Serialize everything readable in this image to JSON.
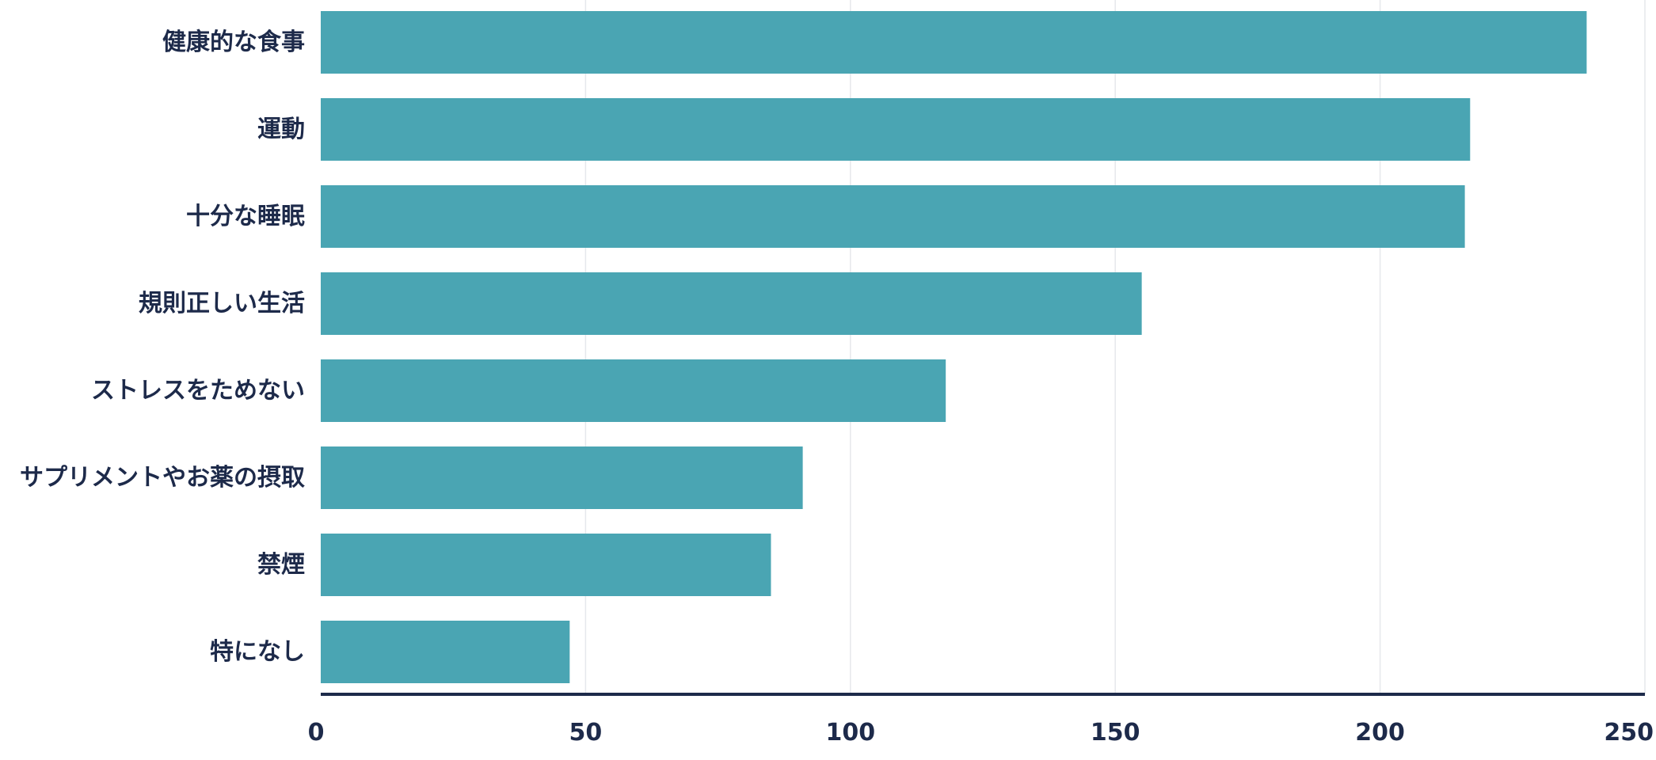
{
  "chart_data": {
    "type": "bar",
    "orientation": "horizontal",
    "categories": [
      "健康的な食事",
      "運動",
      "十分な睡眠",
      "規則正しい生活",
      "ストレスをためない",
      "サプリメントやお薬の摂取",
      "禁煙",
      "特になし"
    ],
    "values": [
      239,
      217,
      216,
      155,
      118,
      91,
      85,
      47
    ],
    "title": "",
    "xlabel": "",
    "ylabel": "",
    "xlim": [
      0,
      250
    ],
    "xticks": [
      0,
      50,
      100,
      150,
      200,
      250
    ],
    "grid": "vertical",
    "legend": "none",
    "bar_color": "#4aa5b3",
    "axis_color": "#1d2a4a",
    "grid_color": "#e6e8ec",
    "label_color": "#1d2a4a"
  }
}
